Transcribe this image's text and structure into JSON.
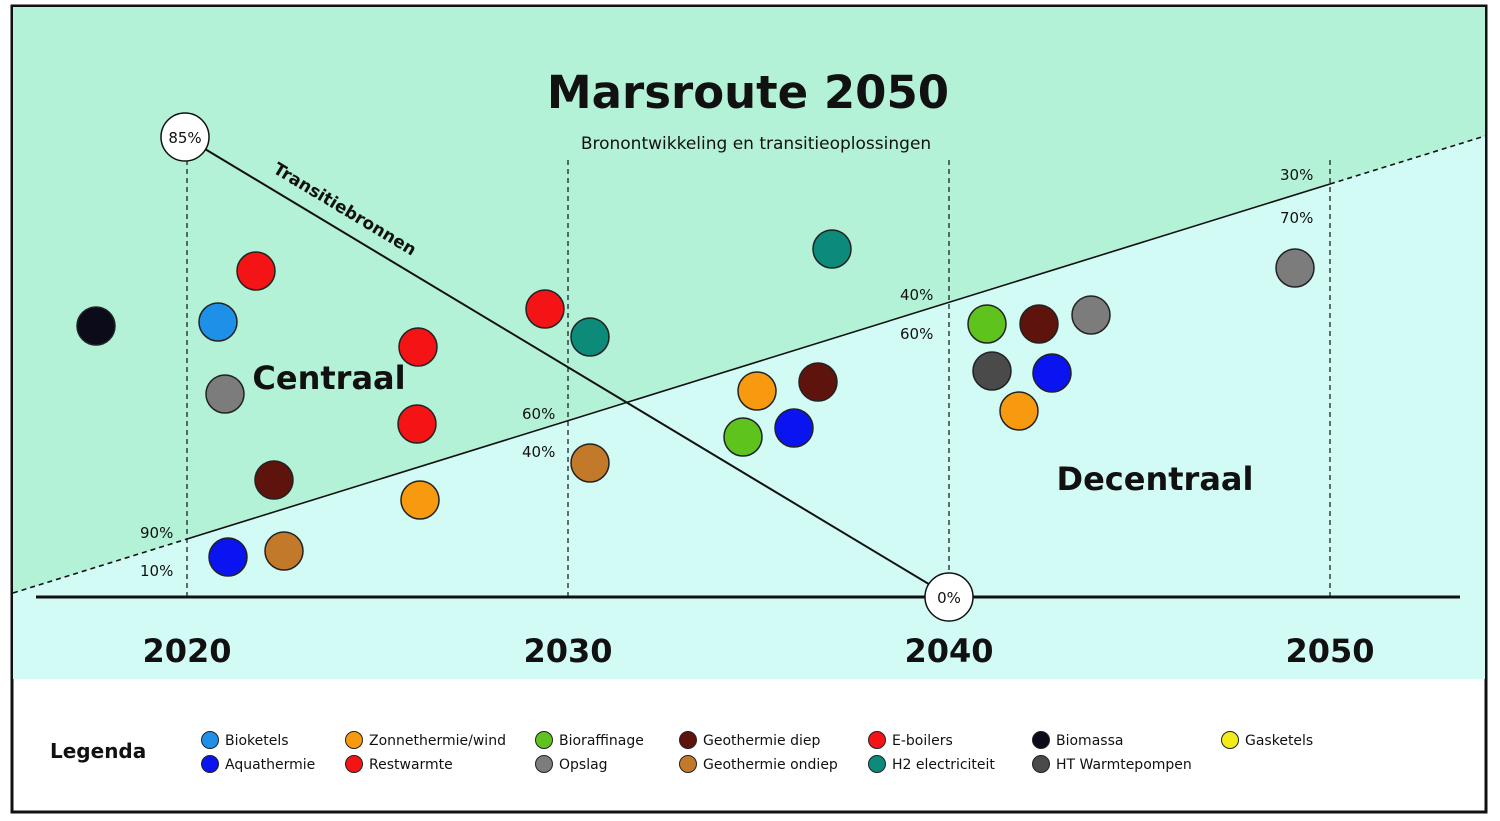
{
  "title": "Marsroute 2050",
  "subtitle": "Bronontwikkeling en transitieoplossingen",
  "region_labels": {
    "central": "Centraal",
    "decentral": "Decentraal"
  },
  "transition_line": {
    "label": "Transitiebronnen",
    "start_label": "85%",
    "end_label": "0%"
  },
  "years": [
    "2020",
    "2030",
    "2040",
    "2050"
  ],
  "split_labels": {
    "y2020": {
      "central": "90%",
      "decentral": "10%"
    },
    "y2030": {
      "central": "60%",
      "decentral": "40%"
    },
    "y2040": {
      "central": "40%",
      "decentral": "60%"
    },
    "y2050": {
      "central": "30%",
      "decentral": "70%"
    }
  },
  "legend": {
    "title": "Legenda",
    "items": [
      {
        "key": "bioketels",
        "label": "Bioketels",
        "color": "#1e90e8"
      },
      {
        "key": "aquathermie",
        "label": "Aquathermie",
        "color": "#0a14f0"
      },
      {
        "key": "zonnethermie",
        "label": "Zonnethermie/wind",
        "color": "#f79a0f"
      },
      {
        "key": "restwarmte",
        "label": "Restwarmte",
        "color": "#f41416"
      },
      {
        "key": "bioraffinage",
        "label": "Bioraffinage",
        "color": "#5fc31e"
      },
      {
        "key": "opslag",
        "label": "Opslag",
        "color": "#7c7c7c"
      },
      {
        "key": "geo_diep",
        "label": "Geothermie diep",
        "color": "#5e130c"
      },
      {
        "key": "geo_ondiep",
        "label": "Geothermie ondiep",
        "color": "#c27a2a"
      },
      {
        "key": "eboilers",
        "label": "E-boilers",
        "color": "#f41416"
      },
      {
        "key": "h2",
        "label": "H2 electriciteit",
        "color": "#0c8a7a"
      },
      {
        "key": "biomassa",
        "label": "Biomassa",
        "color": "#0b0b1a"
      },
      {
        "key": "ht_warmtepompen",
        "label": "HT Warmtepompen",
        "color": "#4a4a4a"
      },
      {
        "key": "gasketels",
        "label": "Gasketels",
        "color": "#f2ec1b"
      }
    ]
  },
  "colors": {
    "central_bg": "#b4f2d8",
    "decentral_bg": "#d2fbf6",
    "border": "#111111"
  }
}
